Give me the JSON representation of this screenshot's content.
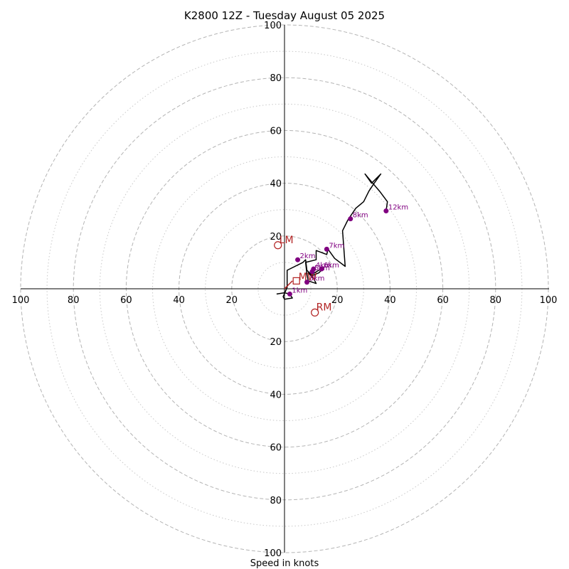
{
  "chart_data": {
    "type": "hodograph",
    "title": "K2800 12Z - Tuesday August 05 2025",
    "xlabel": "Speed in knots",
    "ring_max": 100,
    "major_rings": [
      20,
      40,
      60,
      80,
      100
    ],
    "minor_rings": [
      10,
      30,
      50,
      70,
      90
    ],
    "tick_labels": {
      "left": [
        "100",
        "80",
        "60",
        "40",
        "20"
      ],
      "right": [
        "20",
        "40",
        "60",
        "80",
        "100"
      ],
      "top": [
        "20",
        "40",
        "60",
        "80",
        "100"
      ],
      "bottom": [
        "20",
        "40",
        "60",
        "80",
        "100"
      ]
    },
    "hodograph_line": {
      "color": "#000000",
      "points": [
        [
          -3,
          -2
        ],
        [
          0,
          -1.5
        ],
        [
          2,
          -2
        ],
        [
          3,
          -3.5
        ],
        [
          0,
          -4
        ],
        [
          -0.5,
          -3
        ],
        [
          1,
          0.5
        ],
        [
          1,
          7
        ],
        [
          7,
          10
        ],
        [
          8,
          11
        ],
        [
          8.5,
          7
        ],
        [
          10.5,
          5
        ],
        [
          13,
          6
        ],
        [
          15,
          8
        ],
        [
          13,
          7
        ],
        [
          10.5,
          5.5
        ],
        [
          9,
          6
        ],
        [
          11,
          4
        ],
        [
          12,
          2
        ],
        [
          9,
          3
        ],
        [
          8.5,
          5.5
        ],
        [
          8,
          10
        ],
        [
          12,
          11
        ],
        [
          12,
          14.5
        ],
        [
          16,
          13
        ],
        [
          16.5,
          15
        ],
        [
          19,
          11.5
        ],
        [
          23,
          8.5
        ],
        [
          22,
          22
        ],
        [
          24,
          26
        ],
        [
          27,
          30.5
        ],
        [
          30,
          33
        ],
        [
          32,
          37
        ],
        [
          34,
          40
        ],
        [
          36.5,
          43.5
        ],
        [
          33,
          40
        ],
        [
          30.5,
          43.5
        ],
        [
          33,
          40.5
        ],
        [
          36,
          37
        ],
        [
          39,
          33
        ],
        [
          38.5,
          29.5
        ]
      ]
    },
    "height_markers": {
      "color": "#800080",
      "points": [
        {
          "label": "1km",
          "u": 2,
          "v": -2
        },
        {
          "label": "2km",
          "u": 5,
          "v": 11
        },
        {
          "label": "3km",
          "u": 8.5,
          "v": 2.5
        },
        {
          "label": "4km",
          "u": 11,
          "v": 7.5
        },
        {
          "label": "5km",
          "u": 10.5,
          "v": 6.5
        },
        {
          "label": "6km",
          "u": 14,
          "v": 7.5
        },
        {
          "label": "7km",
          "u": 16,
          "v": 15
        },
        {
          "label": "8km",
          "u": 25,
          "v": 26.5
        },
        {
          "label": "12km",
          "u": 38.5,
          "v": 29.5
        }
      ]
    },
    "storm_motion": {
      "color": "#b22222",
      "bunkers": [
        {
          "label": "LM",
          "u": -2.5,
          "v": 16.5
        },
        {
          "label": "RM",
          "u": 11.5,
          "v": -9
        }
      ],
      "mean_wind": {
        "label": "MW",
        "u": 4.5,
        "v": 3
      },
      "vector": {
        "u": 3,
        "v": 3
      }
    }
  }
}
